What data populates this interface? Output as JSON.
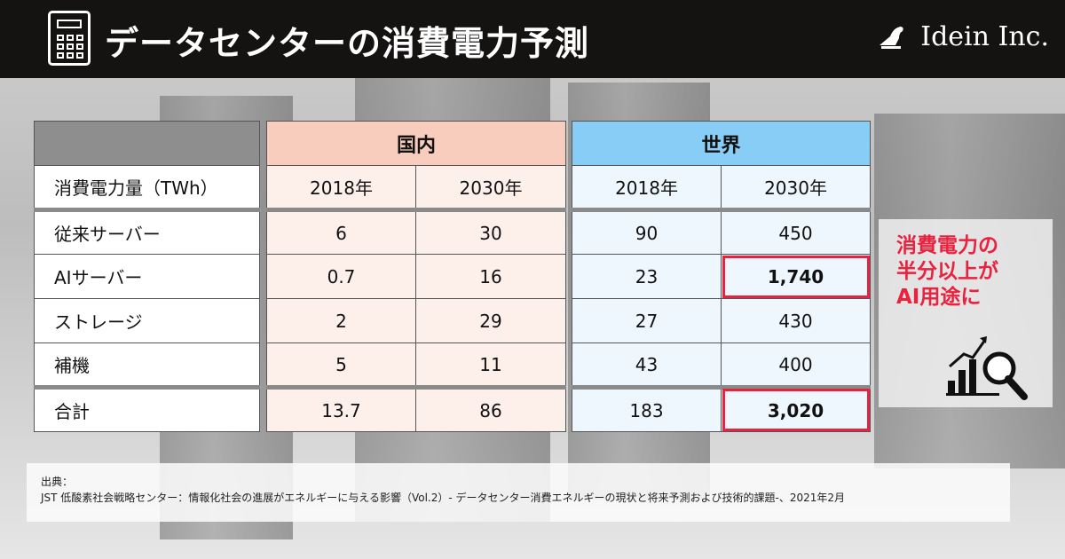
{
  "header": {
    "title": "データセンターの消費電力予測",
    "company": "Idein Inc.",
    "logo_mark": "IDEIN"
  },
  "table": {
    "groups": [
      "国内",
      "世界"
    ],
    "unit_label": "消費電力量（TWh）",
    "years": [
      "2018年",
      "2030年",
      "2018年",
      "2030年"
    ],
    "rows": [
      {
        "label": "従来サーバー",
        "values": [
          "6",
          "30",
          "90",
          "450"
        ]
      },
      {
        "label": "AIサーバー",
        "values": [
          "0.7",
          "16",
          "23",
          "1,740"
        ]
      },
      {
        "label": "ストレージ",
        "values": [
          "2",
          "29",
          "27",
          "430"
        ]
      },
      {
        "label": "補機",
        "values": [
          "5",
          "11",
          "43",
          "400"
        ]
      },
      {
        "label": "合計",
        "values": [
          "13.7",
          "86",
          "183",
          "3,020"
        ]
      }
    ]
  },
  "colors": {
    "domestic_header": "#f9cdbd",
    "domestic_cell": "#fdf0ea",
    "world_header": "#88cdf6",
    "world_cell": "#eef7fd",
    "highlight": "#e8223f"
  },
  "callout": {
    "line1": "消費電力の",
    "line2": "半分以上が",
    "line3": "AI用途に",
    "icon": "chart-magnifier-icon"
  },
  "source": {
    "label": "出典：",
    "text": "JST 低酸素社会戦略センター：情報化社会の進展がエネルギーに与える影響（Vol.2）- データセンター消費エネルギーの現状と将来予測および技術的課題-、2021年2月"
  }
}
